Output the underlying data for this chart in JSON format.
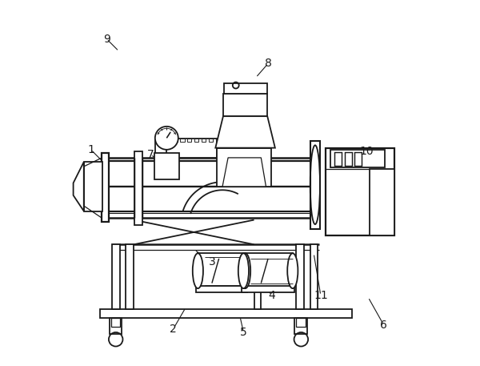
{
  "bg_color": "#ffffff",
  "line_color": "#1a1a1a",
  "figsize": [
    6.0,
    4.57
  ],
  "dpi": 100,
  "labels": {
    "1": [
      0.075,
      0.595,
      0.115,
      0.555
    ],
    "2": [
      0.31,
      0.085,
      0.345,
      0.145
    ],
    "3": [
      0.42,
      0.275,
      0.37,
      0.31
    ],
    "4": [
      0.59,
      0.18,
      0.565,
      0.22
    ],
    "5": [
      0.51,
      0.075,
      0.5,
      0.12
    ],
    "6": [
      0.91,
      0.095,
      0.865,
      0.175
    ],
    "7": [
      0.245,
      0.58,
      0.31,
      0.545
    ],
    "8": [
      0.58,
      0.84,
      0.545,
      0.8
    ],
    "9": [
      0.12,
      0.91,
      0.155,
      0.875
    ],
    "10": [
      0.86,
      0.59,
      0.79,
      0.57
    ],
    "11": [
      0.73,
      0.18,
      0.71,
      0.3
    ]
  }
}
